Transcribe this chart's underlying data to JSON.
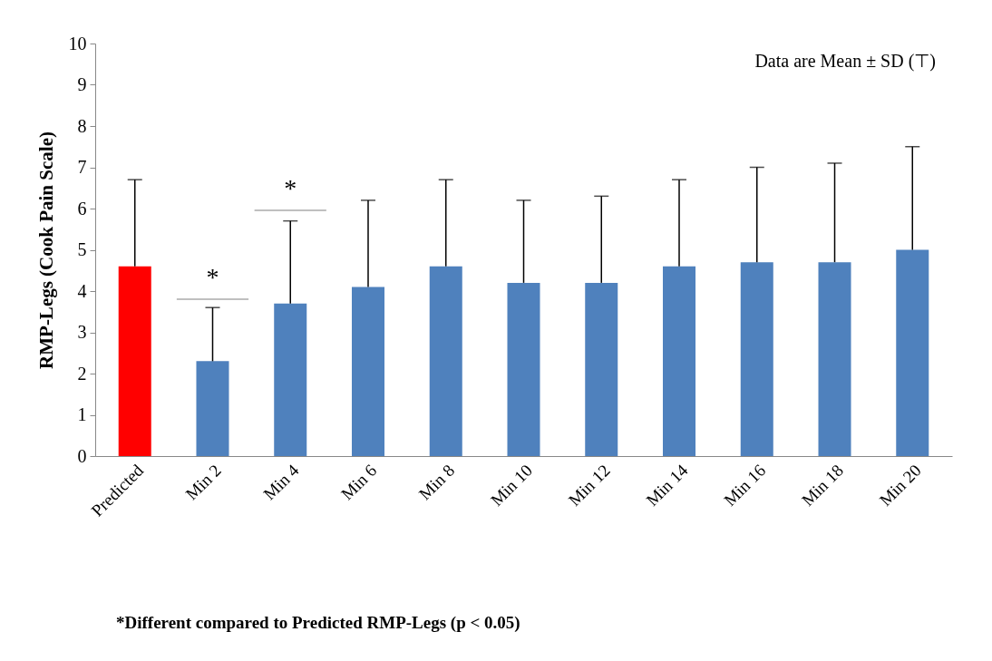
{
  "chart_data": {
    "type": "bar",
    "ylabel": "RMP-Legs (Cook Pain Scale)",
    "categories": [
      "Predicted",
      "Min 2",
      "Min 4",
      "Min 6",
      "Min 8",
      "Min 10",
      "Min 12",
      "Min 14",
      "Min 16",
      "Min 18",
      "Min 20"
    ],
    "values": [
      4.6,
      2.3,
      3.7,
      4.1,
      4.6,
      4.2,
      4.2,
      4.6,
      4.7,
      4.7,
      5.0
    ],
    "colors": [
      "#ff0000",
      "#4f81bd",
      "#4f81bd",
      "#4f81bd",
      "#4f81bd",
      "#4f81bd",
      "#4f81bd",
      "#4f81bd",
      "#4f81bd",
      "#4f81bd",
      "#4f81bd"
    ],
    "errors": [
      [
        4.6,
        6.7
      ],
      [
        2.3,
        3.6
      ],
      [
        3.7,
        5.7
      ],
      [
        4.1,
        6.2
      ],
      [
        4.6,
        6.7
      ],
      [
        4.2,
        6.2
      ],
      [
        4.2,
        6.3
      ],
      [
        4.6,
        6.7
      ],
      [
        4.7,
        7.0
      ],
      [
        4.7,
        7.1
      ],
      [
        5.0,
        7.5
      ]
    ],
    "ylim": [
      0,
      10
    ],
    "yticks": [
      0,
      1,
      2,
      3,
      4,
      5,
      6,
      7,
      8,
      9,
      10
    ],
    "grid": false,
    "annotations": [
      "*",
      "*",
      "Data are Mean ± SD (⊤)",
      "*Different compared to Predicted RMP-Legs (p < 0.05)"
    ]
  }
}
